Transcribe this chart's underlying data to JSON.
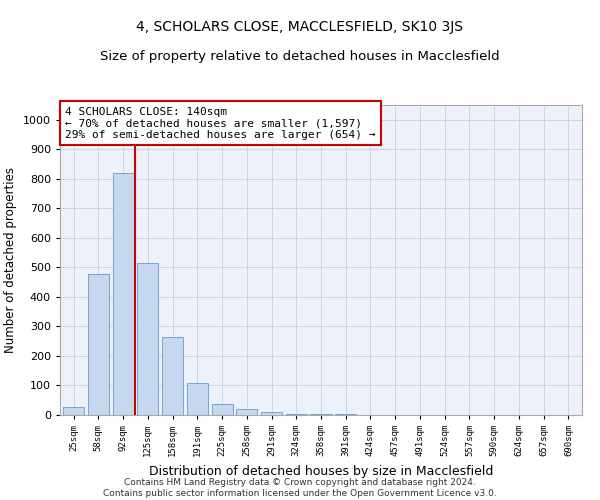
{
  "title": "4, SCHOLARS CLOSE, MACCLESFIELD, SK10 3JS",
  "subtitle": "Size of property relative to detached houses in Macclesfield",
  "xlabel": "Distribution of detached houses by size in Macclesfield",
  "ylabel": "Number of detached properties",
  "bar_labels": [
    "25sqm",
    "58sqm",
    "92sqm",
    "125sqm",
    "158sqm",
    "191sqm",
    "225sqm",
    "258sqm",
    "291sqm",
    "324sqm",
    "358sqm",
    "391sqm",
    "424sqm",
    "457sqm",
    "491sqm",
    "524sqm",
    "557sqm",
    "590sqm",
    "624sqm",
    "657sqm",
    "690sqm"
  ],
  "bar_values": [
    27,
    478,
    820,
    515,
    265,
    110,
    37,
    20,
    10,
    5,
    3,
    2,
    1,
    1,
    0,
    0,
    0,
    0,
    0,
    0,
    0
  ],
  "bar_color": "#c5d8f0",
  "bar_edge_color": "#6699cc",
  "reference_line_x": 2.5,
  "annotation_text": "4 SCHOLARS CLOSE: 140sqm\n← 70% of detached houses are smaller (1,597)\n29% of semi-detached houses are larger (654) →",
  "annotation_box_color": "#ffffff",
  "annotation_box_edge_color": "#cc0000",
  "vline_color": "#cc0000",
  "ylim": [
    0,
    1050
  ],
  "yticks": [
    0,
    100,
    200,
    300,
    400,
    500,
    600,
    700,
    800,
    900,
    1000
  ],
  "footer_text": "Contains HM Land Registry data © Crown copyright and database right 2024.\nContains public sector information licensed under the Open Government Licence v3.0.",
  "grid_color": "#c8d4e8",
  "bg_color": "#edf2fa",
  "title_fontsize": 10,
  "subtitle_fontsize": 9.5,
  "annotation_fontsize": 8
}
